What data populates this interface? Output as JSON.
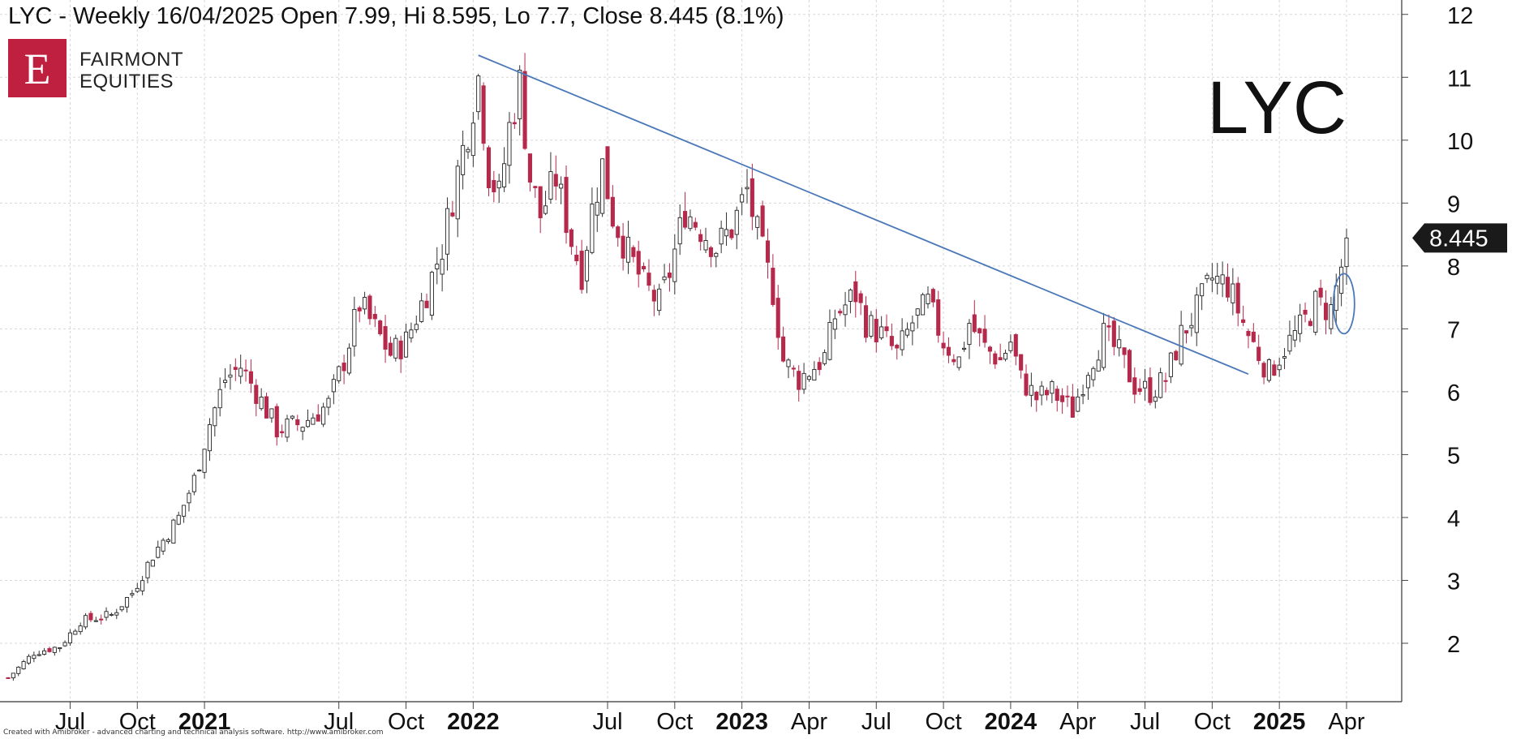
{
  "chart_data": {
    "type": "candlestick",
    "title": "LYC - Weekly 16/04/2025 Open 7.99, Hi 8.595, Lo 7.7, Close 8.445 (8.1%)",
    "watermark": "LYC",
    "price_label": "8.445",
    "last_candle": {
      "date": "16/04/2025",
      "open": 7.99,
      "high": 8.595,
      "low": 7.7,
      "close": 8.445,
      "change": "8.1%"
    },
    "ylim": [
      1.2,
      12.1
    ],
    "y_ticks": [
      2,
      3,
      4,
      5,
      6,
      7,
      8,
      9,
      10,
      11,
      12
    ],
    "xlim": [
      0,
      259
    ],
    "x_ticks": [
      {
        "label": "Jul",
        "week": 12,
        "bold": false
      },
      {
        "label": "Oct",
        "week": 25,
        "bold": false
      },
      {
        "label": "2021",
        "week": 38,
        "bold": true
      },
      {
        "label": "Jul",
        "week": 64,
        "bold": false
      },
      {
        "label": "Oct",
        "week": 77,
        "bold": false
      },
      {
        "label": "2022",
        "week": 90,
        "bold": true
      },
      {
        "label": "Jul",
        "week": 116,
        "bold": false
      },
      {
        "label": "Oct",
        "week": 129,
        "bold": false
      },
      {
        "label": "2023",
        "week": 142,
        "bold": true
      },
      {
        "label": "Apr",
        "week": 155,
        "bold": false
      },
      {
        "label": "Jul",
        "week": 168,
        "bold": false
      },
      {
        "label": "Oct",
        "week": 181,
        "bold": false
      },
      {
        "label": "2024",
        "week": 194,
        "bold": true
      },
      {
        "label": "Apr",
        "week": 207,
        "bold": false
      },
      {
        "label": "Jul",
        "week": 220,
        "bold": false
      },
      {
        "label": "Oct",
        "week": 233,
        "bold": false
      },
      {
        "label": "2025",
        "week": 246,
        "bold": true
      },
      {
        "label": "Apr",
        "week": 259,
        "bold": false
      }
    ],
    "keypoints": [
      [
        0,
        1.45
      ],
      [
        5,
        1.85
      ],
      [
        10,
        1.95
      ],
      [
        14,
        2.35
      ],
      [
        20,
        2.45
      ],
      [
        24,
        2.8
      ],
      [
        28,
        3.4
      ],
      [
        33,
        4.0
      ],
      [
        36,
        4.6
      ],
      [
        39,
        5.5
      ],
      [
        42,
        6.2
      ],
      [
        45,
        6.4
      ],
      [
        48,
        6.0
      ],
      [
        52,
        5.4
      ],
      [
        57,
        5.5
      ],
      [
        62,
        5.8
      ],
      [
        65,
        6.5
      ],
      [
        68,
        7.4
      ],
      [
        71,
        7.0
      ],
      [
        74,
        6.6
      ],
      [
        77,
        6.8
      ],
      [
        81,
        7.6
      ],
      [
        84,
        8.3
      ],
      [
        87,
        9.5
      ],
      [
        89,
        10.2
      ],
      [
        91,
        11.0
      ],
      [
        93,
        9.5
      ],
      [
        95,
        9.1
      ],
      [
        97,
        10.2
      ],
      [
        99,
        10.9
      ],
      [
        101,
        9.4
      ],
      [
        103,
        8.8
      ],
      [
        106,
        9.4
      ],
      [
        109,
        8.4
      ],
      [
        111,
        7.9
      ],
      [
        113,
        8.9
      ],
      [
        115,
        9.6
      ],
      [
        117,
        8.8
      ],
      [
        120,
        8.2
      ],
      [
        123,
        7.7
      ],
      [
        126,
        7.4
      ],
      [
        128,
        7.9
      ],
      [
        131,
        8.9
      ],
      [
        134,
        8.6
      ],
      [
        137,
        8.3
      ],
      [
        140,
        8.6
      ],
      [
        143,
        9.2
      ],
      [
        145,
        8.5
      ],
      [
        148,
        7.6
      ],
      [
        150,
        6.5
      ],
      [
        153,
        6.2
      ],
      [
        156,
        6.4
      ],
      [
        158,
        6.55
      ],
      [
        160,
        7.2
      ],
      [
        164,
        7.55
      ],
      [
        166,
        7.1
      ],
      [
        169,
        6.9
      ],
      [
        172,
        6.6
      ],
      [
        175,
        7.1
      ],
      [
        178,
        7.4
      ],
      [
        181,
        6.8
      ],
      [
        184,
        6.5
      ],
      [
        186,
        7.1
      ],
      [
        189,
        6.7
      ],
      [
        192,
        6.5
      ],
      [
        194,
        6.8
      ],
      [
        196,
        6.2
      ],
      [
        199,
        5.9
      ],
      [
        202,
        6.0
      ],
      [
        206,
        5.7
      ],
      [
        209,
        6.4
      ],
      [
        212,
        6.9
      ],
      [
        215,
        6.6
      ],
      [
        218,
        6.1
      ],
      [
        221,
        6.0
      ],
      [
        224,
        6.2
      ],
      [
        227,
        6.9
      ],
      [
        230,
        7.3
      ],
      [
        233,
        7.8
      ],
      [
        236,
        7.7
      ],
      [
        238,
        7.3
      ],
      [
        240,
        6.9
      ],
      [
        242,
        6.6
      ],
      [
        244,
        6.3
      ],
      [
        247,
        6.7
      ],
      [
        250,
        7.0
      ],
      [
        253,
        7.4
      ],
      [
        256,
        7.3
      ],
      [
        258,
        7.99
      ],
      [
        259,
        8.445
      ]
    ],
    "trendline": {
      "start": {
        "week": 91,
        "price": 11.35
      },
      "end": {
        "week": 240,
        "price": 6.28
      }
    },
    "highlight_ellipse": {
      "week": 258.5,
      "price": 7.4
    },
    "colors": {
      "up_candle": "#ffffff",
      "down_candle": "#b5294b",
      "wick": "#333333",
      "trendline": "#4a78b8",
      "grid": "#d8d8d8",
      "ellipse": "#4a78b8",
      "price_tag": "#1a1a1a"
    }
  },
  "logo": {
    "letter": "E",
    "line1": "FAIRMONT",
    "line2": "EQUITIES"
  },
  "credit": "Created with Amibroker - advanced charting and technical analysis software. http://www.amibroker.com"
}
